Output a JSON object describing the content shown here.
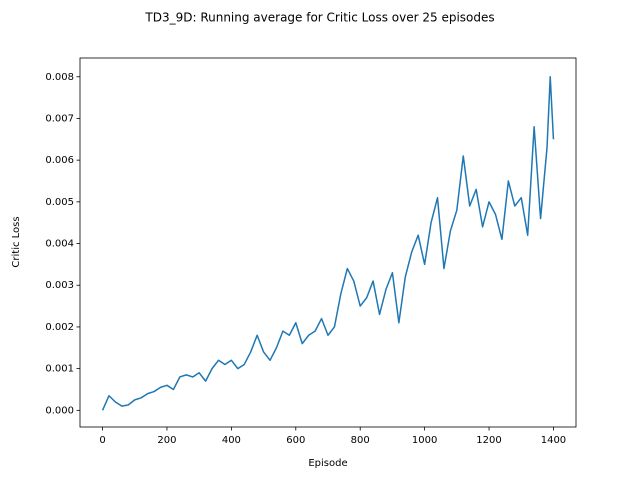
{
  "chart_data": {
    "type": "line",
    "title": "TD3_9D: Running average for Critic Loss over 25 episodes",
    "x_label": "Episode",
    "y_label": "Critic Loss",
    "x": [
      0,
      20,
      40,
      60,
      80,
      100,
      120,
      140,
      160,
      180,
      200,
      220,
      240,
      260,
      280,
      300,
      320,
      340,
      360,
      380,
      400,
      420,
      440,
      460,
      480,
      500,
      520,
      540,
      560,
      580,
      600,
      620,
      640,
      660,
      680,
      700,
      720,
      740,
      760,
      780,
      800,
      820,
      840,
      860,
      880,
      900,
      920,
      940,
      960,
      980,
      1000,
      1020,
      1040,
      1060,
      1080,
      1100,
      1120,
      1140,
      1160,
      1180,
      1200,
      1220,
      1240,
      1260,
      1280,
      1300,
      1320,
      1340,
      1360,
      1380,
      1390,
      1400
    ],
    "series": [
      {
        "color": "#1f77b4",
        "values": [
          0.0,
          0.00035,
          0.0002,
          0.0001,
          0.00013,
          0.00025,
          0.0003,
          0.0004,
          0.00045,
          0.00055,
          0.0006,
          0.0005,
          0.0008,
          0.00085,
          0.0008,
          0.0009,
          0.0007,
          0.001,
          0.0012,
          0.0011,
          0.0012,
          0.001,
          0.0011,
          0.0014,
          0.0018,
          0.0014,
          0.0012,
          0.0015,
          0.0019,
          0.0018,
          0.0021,
          0.0016,
          0.0018,
          0.0019,
          0.0022,
          0.0018,
          0.002,
          0.0028,
          0.0034,
          0.0031,
          0.0025,
          0.0027,
          0.0031,
          0.0023,
          0.0029,
          0.0033,
          0.0021,
          0.0032,
          0.0038,
          0.0042,
          0.0035,
          0.0045,
          0.0051,
          0.0034,
          0.0043,
          0.0048,
          0.0061,
          0.0049,
          0.0053,
          0.0044,
          0.005,
          0.0047,
          0.0041,
          0.0055,
          0.0049,
          0.0051,
          0.0042,
          0.0068,
          0.0046,
          0.0063,
          0.008,
          0.0065
        ]
      }
    ],
    "xlim": [
      -70,
      1470
    ],
    "xticks": [
      0,
      200,
      400,
      600,
      800,
      1000,
      1200,
      1400
    ],
    "ylim": [
      -0.0004,
      0.00845
    ],
    "yticks": [
      {
        "value": 0,
        "label": "0.000"
      },
      {
        "value": 0.001,
        "label": "0.001"
      },
      {
        "value": 0.002,
        "label": "0.002"
      },
      {
        "value": 0.003,
        "label": "0.003"
      },
      {
        "value": 0.004,
        "label": "0.004"
      },
      {
        "value": 0.005,
        "label": "0.005"
      },
      {
        "value": 0.006,
        "label": "0.006"
      },
      {
        "value": 0.007,
        "label": "0.007"
      },
      {
        "value": 0.008,
        "label": "0.008"
      }
    ],
    "grid": false
  }
}
